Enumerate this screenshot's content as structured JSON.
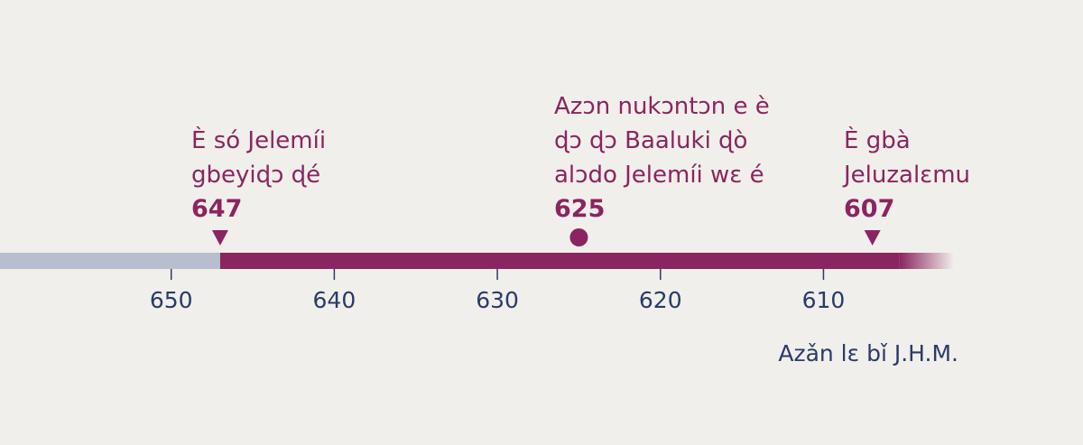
{
  "chart_data": {
    "type": "timeline",
    "x_label": "Azǎn lɛ bǐ J.H.M.",
    "xlim": [
      660.5,
      602
    ],
    "xticks": [
      650,
      640,
      630,
      620,
      610
    ],
    "before_color": "#b8bdd0",
    "color": "#8b2560",
    "events": [
      {
        "lines": [
          "È só Jelemíi",
          "gbeyiɖɔ ɖé"
        ],
        "value": 647,
        "marker": "triangle"
      },
      {
        "lines": [
          "Azɔn nukɔntɔn e è",
          "ɖɔ ɖɔ Baaluki ɖò",
          "alɔdo Jelemíi wɛ é"
        ],
        "value": 625,
        "marker": "circle"
      },
      {
        "lines": [
          "È gbà",
          "Jeluzalɛmu"
        ],
        "value": 607,
        "marker": "triangle"
      }
    ]
  }
}
